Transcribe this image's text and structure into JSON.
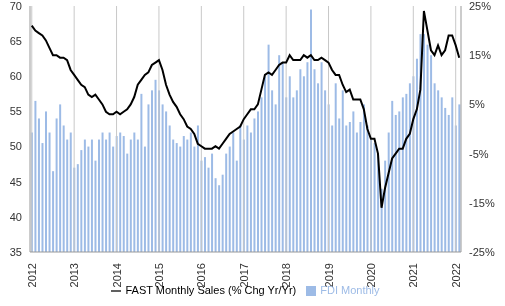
{
  "chart_data": {
    "type": "bar",
    "categories": [
      "2012",
      null,
      null,
      null,
      null,
      null,
      null,
      null,
      null,
      null,
      null,
      null,
      "2013",
      null,
      null,
      null,
      null,
      null,
      null,
      null,
      null,
      null,
      null,
      null,
      "2014",
      null,
      null,
      null,
      null,
      null,
      null,
      null,
      null,
      null,
      null,
      null,
      "2015",
      null,
      null,
      null,
      null,
      null,
      null,
      null,
      null,
      null,
      null,
      null,
      "2016",
      null,
      null,
      null,
      null,
      null,
      null,
      null,
      null,
      null,
      null,
      null,
      "2017",
      null,
      null,
      null,
      null,
      null,
      null,
      null,
      null,
      null,
      null,
      null,
      "2018",
      null,
      null,
      null,
      null,
      null,
      null,
      null,
      null,
      null,
      null,
      null,
      "2019",
      null,
      null,
      null,
      null,
      null,
      null,
      null,
      null,
      null,
      null,
      null,
      "2020",
      null,
      null,
      null,
      null,
      null,
      null,
      null,
      null,
      null,
      null,
      null,
      "2021",
      null,
      null,
      null,
      null,
      null,
      null,
      null,
      null,
      null,
      null,
      null,
      "2022",
      null
    ],
    "series": [
      {
        "name": "FDI Monthly",
        "type": "bar",
        "color": "#9dbbe6",
        "values": [
          52,
          56.5,
          54,
          50.5,
          55,
          52,
          46.5,
          54,
          56,
          53,
          51,
          52,
          47,
          47.5,
          49.5,
          51,
          50,
          51,
          48,
          51,
          52,
          51,
          52,
          50,
          51.5,
          52,
          51.5,
          49,
          51,
          52,
          51,
          57.5,
          50,
          56,
          58,
          59.5,
          58,
          56,
          55,
          53,
          51,
          50.5,
          50,
          51.5,
          51,
          52,
          50,
          53,
          48,
          48.5,
          47,
          49,
          45.5,
          44.5,
          46,
          49,
          50,
          52,
          48,
          53,
          51,
          53,
          52,
          54,
          55,
          57,
          60,
          64.5,
          58,
          56,
          63,
          62,
          57,
          60,
          57,
          58,
          61,
          60,
          62,
          69.5,
          61,
          59,
          62,
          58,
          56,
          53,
          59,
          54,
          58,
          53,
          53.5,
          55,
          52,
          53.5,
          56,
          53,
          51,
          50.5,
          49,
          44,
          48,
          52,
          56.5,
          54.5,
          55,
          57,
          57.5,
          59,
          60,
          62.5,
          66,
          66,
          64.5,
          63,
          59,
          58,
          57,
          55.5,
          54.5,
          57,
          53,
          56
        ]
      },
      {
        "name": "FAST Monthly Sales (% Chg Yr/Yr)",
        "type": "line",
        "color": "#000000",
        "axis": "y2",
        "values": [
          21,
          20,
          19.5,
          19,
          18,
          16.5,
          15,
          15,
          14.5,
          14.5,
          14,
          12,
          11,
          10,
          9,
          8.5,
          7,
          6.5,
          7,
          6,
          5,
          3.5,
          3,
          3,
          3.5,
          3,
          3.5,
          4,
          5,
          6.5,
          9,
          10,
          11,
          11.5,
          13,
          13.5,
          14,
          12,
          9,
          7,
          5.5,
          4.5,
          3,
          2,
          0.5,
          0,
          -1,
          -3,
          -3.5,
          -4,
          -4,
          -4,
          -3.5,
          -4,
          -3,
          -2,
          -1,
          -0.5,
          0,
          0.5,
          2,
          3,
          4,
          4,
          5,
          8,
          11,
          11.5,
          11,
          12,
          13,
          13.5,
          13.5,
          15,
          14,
          14,
          14,
          15,
          14.5,
          15,
          14,
          14,
          14.5,
          14,
          13.5,
          12,
          11,
          11,
          9,
          7.5,
          8,
          6,
          6,
          6,
          4,
          0,
          -2,
          -2,
          -5,
          -16,
          -12,
          -9,
          -6,
          -5,
          -4,
          -4,
          -2,
          -1,
          2,
          4,
          8,
          24,
          20,
          16,
          15,
          17,
          15,
          16,
          19,
          19,
          17,
          14.5
        ]
      }
    ],
    "ylim": [
      35,
      70
    ],
    "yticks": [
      35,
      40,
      45,
      50,
      55,
      60,
      65,
      70
    ],
    "y2lim": [
      -25,
      25
    ],
    "y2ticks": [
      {
        "value": -25,
        "label": "-25%"
      },
      {
        "value": -15,
        "label": "-15%"
      },
      {
        "value": -5,
        "label": "-5%"
      },
      {
        "value": 5,
        "label": "5%"
      },
      {
        "value": 15,
        "label": "15%"
      },
      {
        "value": 25,
        "label": "25%"
      }
    ],
    "grid": true,
    "legend": "bottom"
  }
}
